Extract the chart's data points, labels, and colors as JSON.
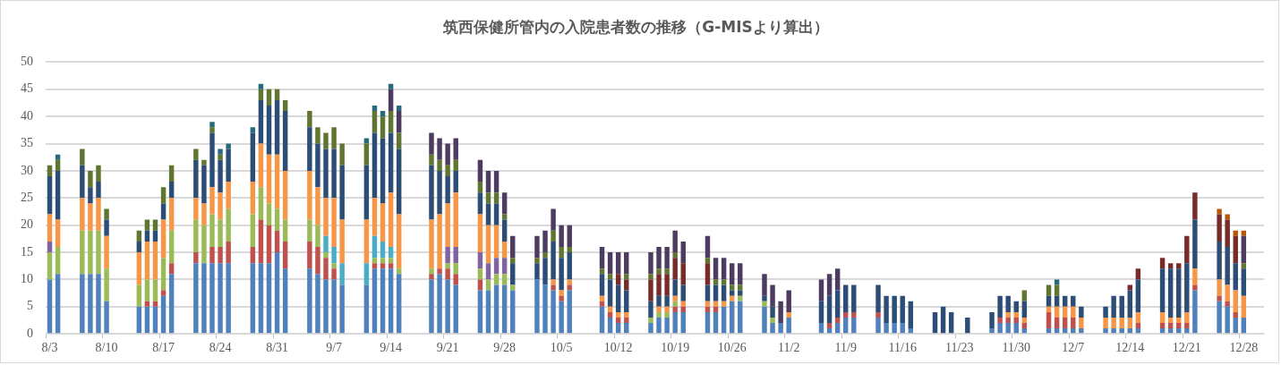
{
  "chart_data": {
    "type": "bar",
    "title": "筑西保健所管内の入院患者数の推移（G-MISより算出）",
    "categories": [
      "8/3",
      null,
      null,
      null,
      null,
      null,
      null,
      "8/10",
      null,
      null,
      null,
      null,
      null,
      null,
      "8/17",
      null,
      null,
      null,
      null,
      null,
      null,
      "8/24",
      null,
      null,
      null,
      null,
      null,
      null,
      "8/31",
      null,
      null,
      null,
      null,
      null,
      null,
      "9/7",
      null,
      null,
      null,
      null,
      null,
      null,
      "9/14",
      null,
      null,
      null,
      null,
      null,
      null,
      "9/21",
      null,
      null,
      null,
      null,
      null,
      null,
      "9/28",
      null,
      null,
      null,
      null,
      null,
      null,
      "10/5",
      null,
      null,
      null,
      null,
      null,
      null,
      "10/12",
      null,
      null,
      null,
      null,
      null,
      null,
      "10/19",
      null,
      null,
      null,
      null,
      null,
      null,
      "10/26",
      null,
      null,
      null,
      null,
      null,
      null,
      "11/2",
      null,
      null,
      null,
      null,
      null,
      null,
      "11/9",
      null,
      null,
      null,
      null,
      null,
      null,
      "11/16",
      null,
      null,
      null,
      null,
      null,
      null,
      "11/23",
      null,
      null,
      null,
      null,
      null,
      null,
      "11/30",
      null,
      null,
      null,
      null,
      null,
      null,
      "12/7",
      null,
      null,
      null,
      null,
      null,
      null,
      "12/14",
      null,
      null,
      null,
      null,
      null,
      null,
      "12/21",
      null,
      null,
      null,
      null,
      null,
      null,
      "12/28",
      null,
      null
    ],
    "stacked": true,
    "ylim": [
      0,
      50
    ],
    "yticks": [
      0,
      5,
      10,
      15,
      20,
      25,
      30,
      35,
      40,
      45,
      50
    ],
    "grid": "y",
    "series": [
      {
        "color": "#4f81bd",
        "values": [
          10,
          11,
          null,
          null,
          11,
          11,
          11,
          6,
          null,
          null,
          null,
          5,
          5,
          5,
          7,
          11,
          null,
          null,
          13,
          13,
          13,
          13,
          13,
          null,
          null,
          13,
          13,
          13,
          15,
          12,
          null,
          null,
          12,
          11,
          10,
          10,
          9,
          null,
          null,
          9,
          12,
          12,
          12,
          11,
          null,
          null,
          null,
          10,
          11,
          10,
          9,
          null,
          null,
          8,
          8,
          9,
          9,
          8,
          null,
          null,
          10,
          9,
          8,
          6,
          8,
          null,
          null,
          null,
          5,
          3,
          2,
          2,
          null,
          null,
          2,
          3,
          3,
          4,
          4,
          null,
          null,
          4,
          4,
          5,
          6,
          6,
          null,
          null,
          5,
          2,
          2,
          3,
          null,
          null,
          null,
          2,
          1,
          2,
          3,
          3,
          null,
          null,
          3,
          2,
          2,
          2,
          1,
          null,
          null,
          0,
          0,
          0,
          null,
          0,
          null,
          null,
          1,
          2,
          2,
          2,
          1,
          null,
          null,
          1,
          1,
          1,
          1,
          1,
          null,
          null,
          1,
          1,
          1,
          1,
          1,
          null,
          null,
          1,
          1,
          1,
          1,
          8,
          null,
          null,
          6,
          5,
          3,
          3,
          null,
          null
        ]
      },
      {
        "color": "#c0504d",
        "values": [
          0,
          0,
          null,
          null,
          0,
          0,
          0,
          0,
          null,
          null,
          null,
          0,
          1,
          1,
          1,
          2,
          null,
          null,
          2,
          0,
          3,
          3,
          4,
          null,
          null,
          3,
          8,
          7,
          4,
          5,
          null,
          null,
          5,
          5,
          4,
          2,
          0,
          null,
          null,
          0,
          1,
          1,
          1,
          0,
          null,
          null,
          null,
          1,
          1,
          2,
          2,
          null,
          null,
          2,
          0,
          0,
          0,
          0,
          null,
          null,
          0,
          0,
          1,
          1,
          1,
          null,
          null,
          null,
          1,
          1,
          1,
          1,
          null,
          null,
          0,
          0,
          0,
          1,
          1,
          null,
          null,
          1,
          1,
          0,
          0,
          0,
          null,
          null,
          0,
          0,
          0,
          0,
          null,
          null,
          null,
          0,
          1,
          1,
          1,
          1,
          null,
          null,
          1,
          0,
          0,
          0,
          0,
          null,
          null,
          0,
          0,
          0,
          null,
          0,
          null,
          null,
          0,
          1,
          1,
          1,
          1,
          null,
          null,
          3,
          2,
          2,
          2,
          0,
          null,
          null,
          0,
          0,
          0,
          0,
          1,
          null,
          null,
          1,
          1,
          1,
          1,
          1,
          null,
          null,
          1,
          1,
          1,
          0,
          null,
          null
        ]
      },
      {
        "color": "#9bbb59",
        "values": [
          5,
          5,
          null,
          null,
          8,
          8,
          8,
          6,
          null,
          null,
          null,
          4,
          4,
          4,
          6,
          6,
          null,
          null,
          6,
          7,
          6,
          5,
          6,
          null,
          null,
          6,
          6,
          4,
          4,
          4,
          null,
          null,
          4,
          4,
          1,
          1,
          0,
          null,
          null,
          0,
          1,
          1,
          1,
          1,
          null,
          null,
          null,
          1,
          0,
          1,
          2,
          null,
          null,
          2,
          2,
          2,
          2,
          1,
          null,
          null,
          0,
          0,
          0,
          0,
          0,
          null,
          null,
          null,
          0,
          0,
          0,
          0,
          null,
          null,
          1,
          1,
          1,
          1,
          0,
          null,
          null,
          0,
          0,
          0,
          0,
          1,
          null,
          null,
          1,
          1,
          0,
          0,
          null,
          null,
          null,
          0,
          0,
          0,
          0,
          0,
          null,
          null,
          0,
          0,
          0,
          0,
          0,
          null,
          null,
          0,
          0,
          0,
          null,
          0,
          null,
          null,
          0,
          0,
          0,
          0,
          0,
          null,
          null,
          0,
          0,
          0,
          0,
          0,
          null,
          null,
          0,
          0,
          0,
          0,
          0,
          null,
          null,
          0,
          0,
          0,
          0,
          0,
          null,
          null,
          0,
          0,
          0,
          0,
          null,
          null
        ]
      },
      {
        "color": "#8064a2",
        "values": [
          2,
          null,
          null,
          null,
          null,
          null,
          null,
          null,
          null,
          null,
          null,
          null,
          null,
          null,
          null,
          null,
          null,
          null,
          null,
          null,
          null,
          null,
          null,
          null,
          null,
          null,
          null,
          null,
          null,
          null,
          null,
          null,
          null,
          null,
          null,
          null,
          null,
          null,
          null,
          null,
          null,
          null,
          null,
          null,
          null,
          null,
          null,
          null,
          null,
          3,
          3,
          null,
          null,
          3,
          3,
          3,
          3,
          null,
          null,
          null,
          null,
          null,
          null,
          null,
          null,
          null,
          null,
          null,
          null,
          null,
          null,
          null,
          null,
          null,
          null,
          null,
          null,
          null,
          null,
          null,
          null,
          null,
          null,
          null,
          null,
          null,
          null,
          null,
          null,
          null,
          null,
          null,
          null,
          null,
          null,
          null,
          null,
          null,
          null,
          null,
          null,
          null,
          null,
          null,
          null,
          null,
          null,
          null,
          null,
          null,
          null,
          null,
          null,
          null,
          null,
          null,
          null,
          null,
          null,
          null,
          null,
          null,
          null,
          null,
          null,
          null,
          null,
          null,
          null,
          null,
          null,
          null,
          null,
          null,
          null,
          null,
          null,
          null,
          null,
          null,
          null,
          null,
          null,
          null,
          null,
          null,
          null,
          null,
          null,
          null
        ]
      },
      {
        "color": "#4bacc6",
        "values": [
          null,
          null,
          null,
          null,
          null,
          null,
          null,
          null,
          null,
          null,
          null,
          null,
          null,
          null,
          null,
          null,
          null,
          null,
          null,
          null,
          null,
          null,
          null,
          null,
          null,
          null,
          null,
          null,
          null,
          null,
          null,
          null,
          null,
          null,
          3,
          3,
          4,
          null,
          null,
          4,
          4,
          3,
          2,
          null,
          null,
          null,
          null,
          null,
          null,
          null,
          null,
          null,
          null,
          null,
          null,
          null,
          null,
          null,
          null,
          null,
          null,
          null,
          null,
          null,
          null,
          null,
          null,
          null,
          null,
          null,
          null,
          null,
          null,
          null,
          null,
          null,
          null,
          null,
          null,
          null,
          null,
          null,
          null,
          null,
          null,
          null,
          null,
          null,
          null,
          null,
          null,
          null,
          null,
          null,
          null,
          null,
          null,
          null,
          null,
          null,
          null,
          null,
          null,
          null,
          null,
          null,
          null,
          null,
          null,
          null,
          null,
          null,
          null,
          null,
          null,
          null,
          null,
          null,
          null,
          null,
          null,
          null,
          null,
          null,
          null,
          null,
          null,
          null,
          null,
          null,
          null,
          null,
          null,
          null,
          null,
          null,
          null,
          null,
          null,
          null,
          null,
          null,
          null,
          null,
          null,
          null,
          null,
          null,
          null,
          null
        ]
      },
      {
        "color": "#f79646",
        "values": [
          5,
          5,
          null,
          null,
          6,
          5,
          6,
          6,
          null,
          null,
          null,
          6,
          7,
          7,
          7,
          6,
          null,
          null,
          4,
          4,
          5,
          5,
          5,
          null,
          null,
          6,
          8,
          9,
          10,
          9,
          null,
          null,
          9,
          7,
          7,
          9,
          8,
          null,
          null,
          8,
          7,
          7,
          10,
          10,
          null,
          null,
          null,
          9,
          10,
          8,
          10,
          null,
          null,
          7,
          7,
          6,
          3,
          0,
          null,
          null,
          0,
          0,
          1,
          1,
          1,
          null,
          null,
          null,
          1,
          1,
          1,
          1,
          null,
          null,
          0,
          1,
          1,
          1,
          1,
          null,
          null,
          1,
          1,
          1,
          1,
          0,
          null,
          null,
          0,
          0,
          0,
          1,
          null,
          null,
          null,
          0,
          0,
          0,
          0,
          0,
          null,
          null,
          0,
          0,
          0,
          0,
          0,
          null,
          null,
          0,
          0,
          0,
          null,
          0,
          null,
          null,
          0,
          0,
          1,
          1,
          1,
          null,
          null,
          1,
          2,
          2,
          2,
          2,
          null,
          null,
          2,
          2,
          2,
          2,
          2,
          null,
          null,
          2,
          1,
          1,
          2,
          3,
          null,
          null,
          3,
          3,
          4,
          4,
          null,
          null
        ]
      },
      {
        "color": "#2c4d75",
        "values": [
          7,
          9,
          null,
          null,
          6,
          3,
          3,
          3,
          null,
          null,
          null,
          2,
          2,
          2,
          3,
          3,
          null,
          null,
          7,
          7,
          10,
          6,
          6,
          null,
          null,
          9,
          8,
          9,
          10,
          11,
          null,
          null,
          8,
          8,
          9,
          9,
          10,
          null,
          null,
          10,
          12,
          12,
          11,
          12,
          null,
          null,
          null,
          10,
          8,
          5,
          4,
          null,
          null,
          4,
          4,
          4,
          4,
          4,
          null,
          null,
          3,
          5,
          7,
          6,
          5,
          null,
          null,
          null,
          4,
          5,
          5,
          4,
          null,
          null,
          3,
          2,
          2,
          3,
          3,
          null,
          null,
          3,
          3,
          3,
          1,
          1,
          null,
          null,
          1,
          2,
          0,
          0,
          null,
          null,
          null,
          4,
          5,
          5,
          5,
          5,
          null,
          null,
          5,
          5,
          5,
          5,
          5,
          null,
          null,
          4,
          5,
          4,
          null,
          3,
          null,
          null,
          3,
          4,
          3,
          2,
          3,
          null,
          null,
          2,
          2,
          2,
          2,
          2,
          null,
          null,
          2,
          4,
          4,
          5,
          6,
          null,
          null,
          8,
          9,
          9,
          9,
          9,
          null,
          null,
          7,
          7,
          5,
          5,
          null,
          null
        ]
      },
      {
        "color": "#772c2a",
        "values": [
          null,
          null,
          null,
          null,
          null,
          null,
          null,
          null,
          null,
          null,
          null,
          null,
          null,
          null,
          null,
          null,
          null,
          null,
          null,
          null,
          null,
          null,
          null,
          null,
          null,
          null,
          null,
          null,
          null,
          null,
          null,
          null,
          null,
          null,
          null,
          null,
          null,
          null,
          null,
          null,
          null,
          null,
          null,
          null,
          null,
          null,
          null,
          null,
          null,
          null,
          null,
          null,
          null,
          null,
          null,
          null,
          null,
          null,
          null,
          null,
          null,
          null,
          null,
          null,
          null,
          null,
          null,
          null,
          null,
          null,
          2,
          2,
          null,
          null,
          4,
          4,
          4,
          4,
          4,
          null,
          null,
          4,
          null,
          null,
          null,
          null,
          null,
          null,
          null,
          null,
          null,
          null,
          null,
          null,
          null,
          null,
          null,
          null,
          null,
          null,
          null,
          null,
          null,
          null,
          null,
          null,
          null,
          null,
          null,
          null,
          null,
          null,
          null,
          null,
          null,
          null,
          null,
          null,
          null,
          null,
          null,
          null,
          null,
          null,
          null,
          null,
          null,
          null,
          null,
          null,
          null,
          null,
          null,
          1,
          2,
          null,
          null,
          2,
          1,
          1,
          5,
          5,
          null,
          null,
          5,
          5,
          5,
          null,
          null,
          null
        ]
      },
      {
        "color": "#5f7530",
        "values": [
          2,
          2,
          null,
          null,
          3,
          3,
          3,
          2,
          null,
          null,
          null,
          2,
          2,
          2,
          3,
          3,
          null,
          null,
          2,
          1,
          1,
          1,
          0,
          null,
          null,
          0,
          2,
          3,
          2,
          2,
          null,
          null,
          3,
          3,
          3,
          4,
          4,
          null,
          null,
          4,
          4,
          4,
          4,
          3,
          null,
          null,
          null,
          2,
          2,
          2,
          2,
          null,
          null,
          2,
          2,
          2,
          1,
          1,
          null,
          null,
          1,
          1,
          2,
          2,
          1,
          null,
          null,
          null,
          1,
          1,
          0,
          1,
          null,
          null,
          1,
          1,
          1,
          1,
          0,
          null,
          null,
          1,
          1,
          1,
          1,
          1,
          null,
          null,
          0,
          0,
          0,
          0,
          null,
          null,
          null,
          0,
          0,
          0,
          0,
          0,
          null,
          null,
          0,
          0,
          0,
          0,
          0,
          null,
          null,
          0,
          0,
          0,
          null,
          0,
          null,
          null,
          0,
          0,
          0,
          0,
          2,
          null,
          null,
          2,
          2,
          0,
          0,
          0,
          null,
          null,
          0,
          0,
          0,
          0,
          0,
          null,
          null,
          0,
          0,
          0,
          0,
          0,
          null,
          null,
          0,
          0,
          0,
          1,
          null,
          null
        ]
      },
      {
        "color": "#4d3b62",
        "values": [
          null,
          null,
          null,
          null,
          null,
          null,
          null,
          null,
          null,
          null,
          null,
          null,
          null,
          null,
          null,
          null,
          null,
          null,
          null,
          null,
          null,
          null,
          null,
          null,
          null,
          null,
          null,
          null,
          null,
          null,
          null,
          null,
          null,
          null,
          null,
          null,
          null,
          null,
          null,
          null,
          null,
          null,
          4,
          4,
          null,
          null,
          null,
          4,
          4,
          4,
          4,
          null,
          null,
          4,
          4,
          4,
          4,
          4,
          null,
          null,
          4,
          4,
          4,
          4,
          4,
          null,
          null,
          null,
          4,
          4,
          4,
          4,
          null,
          null,
          4,
          4,
          4,
          4,
          4,
          null,
          null,
          4,
          4,
          4,
          4,
          4,
          null,
          null,
          4,
          4,
          4,
          4,
          null,
          null,
          null,
          4,
          4,
          4,
          null,
          null,
          null,
          null,
          null,
          null,
          null,
          null,
          null,
          null,
          null,
          null,
          null,
          null,
          null,
          null,
          null,
          null,
          null,
          null,
          null,
          null,
          null,
          null,
          null,
          null,
          null,
          null,
          null,
          null,
          null,
          null,
          null,
          null,
          null,
          null,
          null,
          null,
          null,
          null,
          null,
          null,
          null,
          null,
          null,
          null,
          null,
          null,
          null,
          5,
          null,
          null
        ]
      },
      {
        "color": "#276a7c",
        "values": [
          null,
          1,
          null,
          null,
          null,
          null,
          null,
          null,
          null,
          null,
          null,
          null,
          null,
          null,
          null,
          null,
          null,
          null,
          null,
          null,
          1,
          1,
          1,
          null,
          null,
          1,
          1,
          null,
          null,
          null,
          null,
          null,
          null,
          null,
          null,
          null,
          null,
          null,
          null,
          1,
          1,
          1,
          1,
          1,
          null,
          null,
          null,
          null,
          null,
          null,
          null,
          null,
          null,
          null,
          null,
          null,
          null,
          null,
          null,
          null,
          null,
          null,
          null,
          null,
          null,
          null,
          null,
          null,
          null,
          null,
          null,
          null,
          null,
          null,
          null,
          null,
          null,
          null,
          null,
          null,
          null,
          null,
          null,
          null,
          null,
          null,
          null,
          null,
          null,
          null,
          null,
          null,
          null,
          null,
          null,
          null,
          null,
          null,
          null,
          null,
          null,
          null,
          null,
          null,
          null,
          null,
          null,
          null,
          null,
          null,
          null,
          null,
          null,
          null,
          null,
          null,
          null,
          null,
          null,
          null,
          null,
          null,
          null,
          null,
          1,
          null,
          null,
          null,
          null,
          null,
          null,
          null,
          null,
          null,
          null,
          null,
          null,
          null,
          null,
          null,
          null,
          null,
          null,
          null,
          null,
          null,
          null,
          null,
          null,
          null
        ]
      },
      {
        "color": "#b65708",
        "values": [
          null,
          null,
          null,
          null,
          null,
          null,
          null,
          null,
          null,
          null,
          null,
          null,
          null,
          null,
          null,
          null,
          null,
          null,
          null,
          null,
          null,
          null,
          null,
          null,
          null,
          null,
          null,
          null,
          null,
          null,
          null,
          null,
          null,
          null,
          null,
          null,
          null,
          null,
          null,
          null,
          null,
          null,
          null,
          null,
          null,
          null,
          null,
          null,
          null,
          null,
          null,
          null,
          null,
          null,
          null,
          null,
          null,
          null,
          null,
          null,
          null,
          null,
          null,
          null,
          null,
          null,
          null,
          null,
          null,
          null,
          null,
          null,
          null,
          null,
          null,
          null,
          null,
          null,
          null,
          null,
          null,
          null,
          null,
          null,
          null,
          null,
          null,
          null,
          null,
          null,
          null,
          null,
          null,
          null,
          null,
          null,
          null,
          null,
          null,
          null,
          null,
          null,
          null,
          null,
          null,
          null,
          null,
          null,
          null,
          null,
          null,
          null,
          null,
          null,
          null,
          null,
          null,
          null,
          null,
          null,
          null,
          null,
          null,
          null,
          null,
          null,
          null,
          null,
          null,
          null,
          null,
          null,
          null,
          null,
          null,
          null,
          null,
          null,
          null,
          null,
          null,
          null,
          null,
          null,
          1,
          1,
          1,
          1,
          null,
          null
        ]
      }
    ]
  }
}
